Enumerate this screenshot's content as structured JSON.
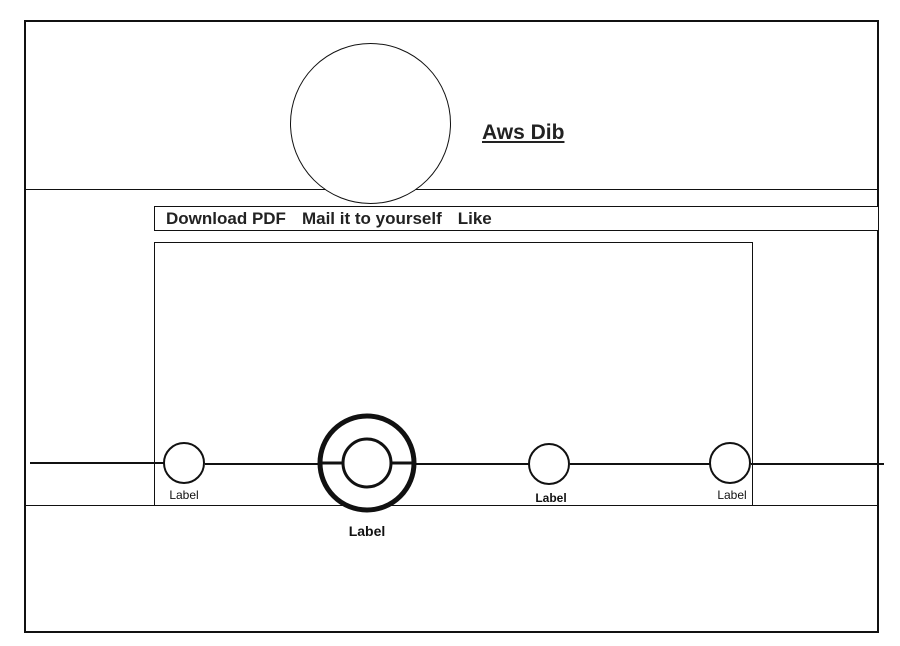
{
  "profile": {
    "name": "Aws Dib",
    "avatar_icon": "user-avatar-placeholder"
  },
  "actions": {
    "download_pdf": "Download PDF",
    "mail_to_self": "Mail it to yourself",
    "like": "Like"
  },
  "timeline": {
    "nodes": [
      {
        "label": "Label",
        "selected": false
      },
      {
        "label": "Label",
        "selected": true
      },
      {
        "label": "Label",
        "selected": false
      },
      {
        "label": "Label",
        "selected": false
      }
    ]
  }
}
